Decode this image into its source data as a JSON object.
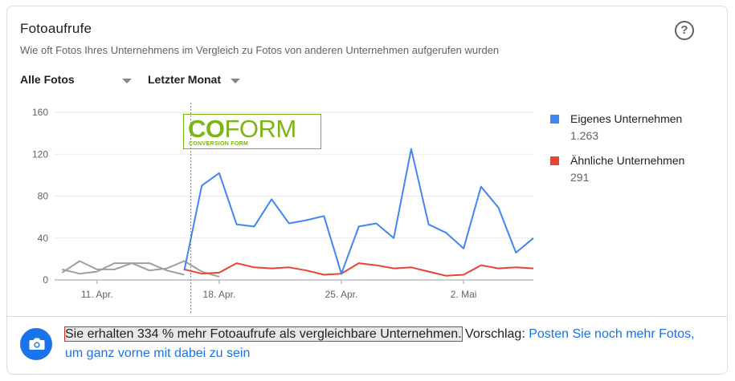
{
  "card": {
    "title": "Fotoaufrufe",
    "subtitle": "Wie oft Fotos Ihres Unternehmens im Vergleich zu Fotos von anderen Unternehmen aufgerufen wurden",
    "help_symbol": "?",
    "help_icon": "help-circle-icon"
  },
  "filters": {
    "photo_type": "Alle Fotos",
    "period": "Letzter Monat"
  },
  "logo": {
    "co": "CO",
    "form": "FORM",
    "tagline": "CONVERSION FORM"
  },
  "chart_data": {
    "type": "line",
    "ylim": [
      0,
      160
    ],
    "yticks": [
      "0",
      "40",
      "80",
      "120",
      "160"
    ],
    "x_ticks": [
      {
        "label": "11. Apr.",
        "day": 11
      },
      {
        "label": "18. Apr.",
        "day": 18
      },
      {
        "label": "25. Apr.",
        "day": 25
      },
      {
        "label": "2. Mai",
        "day": 32
      }
    ],
    "grid": true,
    "legend_position": "right",
    "divider_day": 16,
    "series": [
      {
        "name": "Eigenes Unternehmen",
        "total": "1.263",
        "color": "#4285f4",
        "points": [
          [
            16,
            9
          ],
          [
            17,
            90
          ],
          [
            18,
            102
          ],
          [
            19,
            53
          ],
          [
            20,
            51
          ],
          [
            21,
            77
          ],
          [
            22,
            54
          ],
          [
            23,
            57
          ],
          [
            24,
            61
          ],
          [
            25,
            6
          ],
          [
            26,
            51
          ],
          [
            27,
            54
          ],
          [
            28,
            40
          ],
          [
            29,
            125
          ],
          [
            30,
            53
          ],
          [
            31,
            45
          ],
          [
            32,
            30
          ],
          [
            33,
            89
          ],
          [
            34,
            69
          ],
          [
            35,
            26
          ],
          [
            36,
            40
          ]
        ]
      },
      {
        "name": "Ähnliche Unternehmen",
        "total": "291",
        "color": "#ea4335",
        "points": [
          [
            16,
            10
          ],
          [
            17,
            6
          ],
          [
            18,
            7
          ],
          [
            19,
            16
          ],
          [
            20,
            12
          ],
          [
            21,
            11
          ],
          [
            22,
            12
          ],
          [
            23,
            9
          ],
          [
            24,
            5
          ],
          [
            25,
            6
          ],
          [
            26,
            16
          ],
          [
            27,
            14
          ],
          [
            28,
            11
          ],
          [
            29,
            12
          ],
          [
            30,
            8
          ],
          [
            31,
            4
          ],
          [
            32,
            5
          ],
          [
            33,
            14
          ],
          [
            34,
            11
          ],
          [
            35,
            12
          ],
          [
            36,
            11
          ]
        ]
      },
      {
        "color": "#9aa0a6",
        "points": [
          [
            9,
            7
          ],
          [
            10,
            18
          ],
          [
            11,
            10
          ],
          [
            12,
            10
          ],
          [
            13,
            16
          ],
          [
            14,
            9
          ],
          [
            15,
            11
          ],
          [
            16,
            18
          ],
          [
            17,
            8
          ],
          [
            18,
            3
          ]
        ]
      },
      {
        "color": "#9aa0a6",
        "points": [
          [
            9,
            10
          ],
          [
            10,
            6
          ],
          [
            11,
            8
          ],
          [
            12,
            16
          ],
          [
            13,
            16
          ],
          [
            14,
            16
          ],
          [
            15,
            9
          ],
          [
            16,
            5
          ]
        ]
      }
    ]
  },
  "footer": {
    "icon": "camera-icon",
    "highlight": "Sie erhalten 334 % mehr Fotoaufrufe als vergleichbare Unternehmen.",
    "suggestion_prefix": " Vorschlag: ",
    "link": "Posten Sie noch mehr Fotos, um ganz vorne mit dabei zu sein"
  }
}
